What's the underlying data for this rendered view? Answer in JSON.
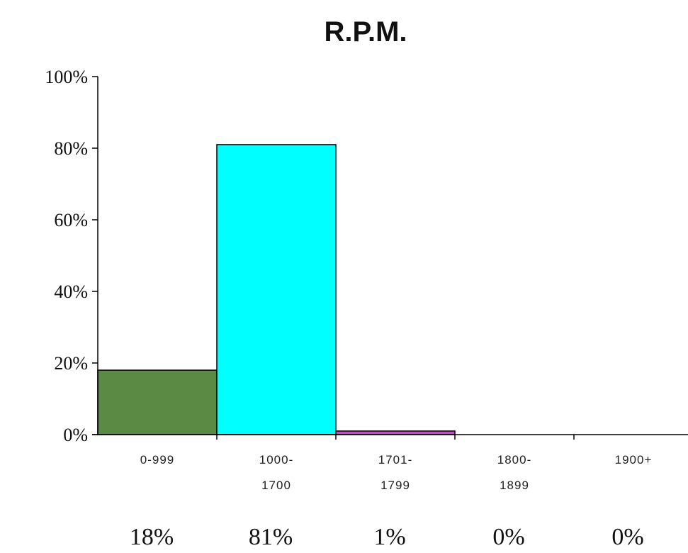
{
  "chart_data": {
    "type": "bar",
    "title": "R.P.M.",
    "xlabel": "",
    "ylabel": "",
    "categories": [
      {
        "lines": [
          "0-999"
        ]
      },
      {
        "lines": [
          "1000-",
          "1700"
        ]
      },
      {
        "lines": [
          "1701-",
          "1799"
        ]
      },
      {
        "lines": [
          "1800-",
          "1899"
        ]
      },
      {
        "lines": [
          "1900+"
        ]
      }
    ],
    "values": [
      18,
      81,
      1,
      0,
      0
    ],
    "data_labels": [
      "18%",
      "81%",
      "1%",
      "0%",
      "0%"
    ],
    "bar_colors": [
      "#5b8a44",
      "#00ffff",
      "#cc44cc",
      "#ffffff",
      "#ffffff"
    ],
    "ylim": [
      0,
      100
    ],
    "yticks": [
      {
        "value": 0,
        "label": "0%"
      },
      {
        "value": 20,
        "label": "20%"
      },
      {
        "value": 40,
        "label": "40%"
      },
      {
        "value": 60,
        "label": "60%"
      },
      {
        "value": 80,
        "label": "80%"
      },
      {
        "value": 100,
        "label": "100%"
      }
    ],
    "grid": false,
    "legend": "none"
  }
}
